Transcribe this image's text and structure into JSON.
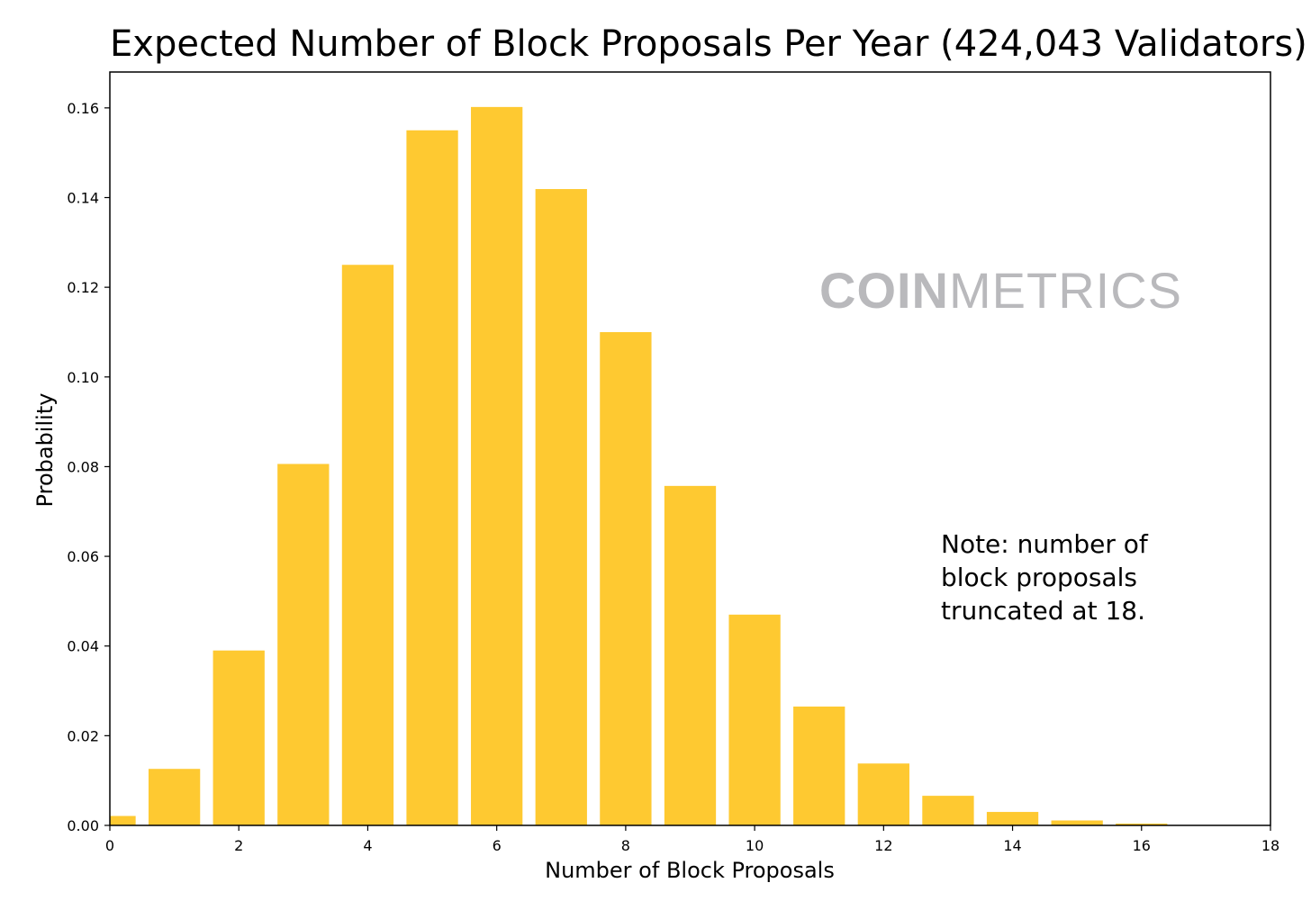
{
  "chart_data": {
    "type": "bar",
    "title": "Expected Number of Block Proposals Per Year (424,043 Validators)",
    "xlabel": "Number of Block Proposals",
    "ylabel": "Probability",
    "x": [
      0,
      1,
      2,
      3,
      4,
      5,
      6,
      7,
      8,
      9,
      10,
      11,
      12,
      13,
      14,
      15,
      16,
      17
    ],
    "values": [
      0.0021,
      0.0126,
      0.039,
      0.0806,
      0.125,
      0.155,
      0.1602,
      0.1419,
      0.11,
      0.0757,
      0.047,
      0.0265,
      0.0138,
      0.0066,
      0.003,
      0.0011,
      0.0004,
      0.0001
    ],
    "xlim": [
      0,
      18
    ],
    "ylim": [
      0,
      0.168
    ],
    "xticks": [
      "0",
      "2",
      "4",
      "6",
      "8",
      "10",
      "12",
      "14",
      "16",
      "18"
    ],
    "yticks": [
      "0.00",
      "0.02",
      "0.04",
      "0.06",
      "0.08",
      "0.10",
      "0.12",
      "0.14",
      "0.16"
    ],
    "grid": false,
    "bar_color": "#fec931",
    "annotation": "Note: number of block proposals truncated at 18.",
    "watermark": {
      "bold": "COIN",
      "light": "METRICS"
    }
  }
}
